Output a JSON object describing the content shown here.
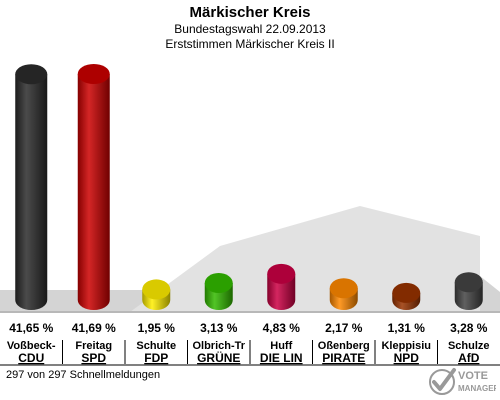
{
  "header": {
    "title": "Märkischer Kreis",
    "subtitle": "Bundestagswahl 22.09.2013",
    "subtitle2": "Erststimmen Märkischer Kreis II"
  },
  "footer": {
    "status": "297 von 297 Schnellmeldungen"
  },
  "logo": {
    "line1": "VOTE",
    "line2": "MANAGER"
  },
  "chart_data": {
    "type": "bar",
    "title": "Märkischer Kreis",
    "subtitle": "Bundestagswahl 22.09.2013 — Erststimmen Märkischer Kreis II",
    "candidates": [
      "Voßbeck-",
      "Freitag",
      "Schulte",
      "Olbrich-Tr",
      "Huff",
      "Oßenberg",
      "Kleppisiu",
      "Schulze"
    ],
    "categories": [
      "CDU",
      "SPD",
      "FDP",
      "GRÜNE",
      "DIE LIN",
      "PIRATE",
      "NPD",
      "AfD"
    ],
    "values": [
      41.65,
      41.69,
      1.95,
      3.13,
      4.83,
      2.17,
      1.31,
      3.28
    ],
    "value_labels": [
      "41,65 %",
      "41,69 %",
      "1,95 %",
      "3,13 %",
      "4,83 %",
      "2,17 %",
      "1,31 %",
      "3,28 %"
    ],
    "colors": [
      "#2b2b2b",
      "#cc0000",
      "#ffee00",
      "#33bb00",
      "#cc0044",
      "#ff8800",
      "#993300",
      "#444444"
    ],
    "ylim": [
      0,
      41.69
    ],
    "grid": false
  }
}
